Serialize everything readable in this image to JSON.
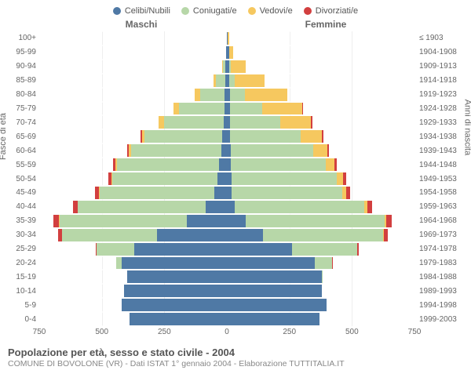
{
  "legend": [
    {
      "label": "Celibi/Nubili",
      "color": "#4f79a5"
    },
    {
      "label": "Coniugati/e",
      "color": "#b7d7a8"
    },
    {
      "label": "Vedovi/e",
      "color": "#f6c85f"
    },
    {
      "label": "Divorziati/e",
      "color": "#d23f3f"
    }
  ],
  "sideHeaders": {
    "left": "Maschi",
    "right": "Femmine"
  },
  "axisLabels": {
    "left": "Fasce di età",
    "right": "Anni di nascita"
  },
  "caption": {
    "title": "Popolazione per età, sesso e stato civile - 2004",
    "sub": "COMUNE DI BOVOLONE (VR) - Dati ISTAT 1° gennaio 2004 - Elaborazione TUTTITALIA.IT"
  },
  "colors": {
    "single": "#4f79a5",
    "married": "#b7d7a8",
    "widowed": "#f6c85f",
    "divorced": "#d23f3f",
    "grid": "#eeeeee",
    "centerline": "#5b8fb9",
    "text": "#666666",
    "background": "#ffffff"
  },
  "xAxis": {
    "min": 0,
    "max": 750,
    "ticks": [
      750,
      500,
      250,
      0,
      250,
      500,
      750
    ]
  },
  "ageLabels": [
    "100+",
    "95-99",
    "90-94",
    "85-89",
    "80-84",
    "75-79",
    "70-74",
    "65-69",
    "60-64",
    "55-59",
    "50-54",
    "45-49",
    "40-44",
    "35-39",
    "30-34",
    "25-29",
    "20-24",
    "15-19",
    "10-14",
    "5-9",
    "0-4"
  ],
  "birthLabels": [
    "≤ 1903",
    "1904-1908",
    "1909-1913",
    "1914-1918",
    "1919-1923",
    "1924-1928",
    "1929-1933",
    "1934-1938",
    "1939-1943",
    "1944-1948",
    "1949-1953",
    "1954-1958",
    "1959-1963",
    "1964-1968",
    "1969-1973",
    "1974-1978",
    "1979-1983",
    "1984-1988",
    "1989-1993",
    "1994-1998",
    "1999-2003"
  ],
  "rows": [
    {
      "m": {
        "single": 0,
        "married": 0,
        "widowed": 0,
        "divorced": 0
      },
      "f": {
        "single": 3,
        "married": 0,
        "widowed": 5,
        "divorced": 0
      }
    },
    {
      "m": {
        "single": 2,
        "married": 1,
        "widowed": 1,
        "divorced": 0
      },
      "f": {
        "single": 8,
        "married": 0,
        "widowed": 18,
        "divorced": 0
      }
    },
    {
      "m": {
        "single": 5,
        "married": 10,
        "widowed": 5,
        "divorced": 0
      },
      "f": {
        "single": 10,
        "married": 5,
        "widowed": 60,
        "divorced": 0
      }
    },
    {
      "m": {
        "single": 5,
        "married": 40,
        "widowed": 10,
        "divorced": 0
      },
      "f": {
        "single": 10,
        "married": 20,
        "widowed": 120,
        "divorced": 0
      }
    },
    {
      "m": {
        "single": 8,
        "married": 100,
        "widowed": 22,
        "divorced": 0
      },
      "f": {
        "single": 12,
        "married": 60,
        "widowed": 170,
        "divorced": 0
      }
    },
    {
      "m": {
        "single": 10,
        "married": 180,
        "widowed": 25,
        "divorced": 0
      },
      "f": {
        "single": 12,
        "married": 130,
        "widowed": 160,
        "divorced": 4
      }
    },
    {
      "m": {
        "single": 12,
        "married": 240,
        "widowed": 20,
        "divorced": 2
      },
      "f": {
        "single": 12,
        "married": 200,
        "widowed": 125,
        "divorced": 5
      }
    },
    {
      "m": {
        "single": 18,
        "married": 310,
        "widowed": 12,
        "divorced": 4
      },
      "f": {
        "single": 14,
        "married": 280,
        "widowed": 85,
        "divorced": 8
      }
    },
    {
      "m": {
        "single": 22,
        "married": 360,
        "widowed": 10,
        "divorced": 6
      },
      "f": {
        "single": 16,
        "married": 330,
        "widowed": 55,
        "divorced": 8
      }
    },
    {
      "m": {
        "single": 30,
        "married": 410,
        "widowed": 6,
        "divorced": 8
      },
      "f": {
        "single": 16,
        "married": 380,
        "widowed": 35,
        "divorced": 10
      }
    },
    {
      "m": {
        "single": 38,
        "married": 420,
        "widowed": 4,
        "divorced": 12
      },
      "f": {
        "single": 18,
        "married": 420,
        "widowed": 25,
        "divorced": 14
      }
    },
    {
      "m": {
        "single": 50,
        "married": 460,
        "widowed": 3,
        "divorced": 14
      },
      "f": {
        "single": 20,
        "married": 440,
        "widowed": 18,
        "divorced": 16
      }
    },
    {
      "m": {
        "single": 85,
        "married": 510,
        "widowed": 2,
        "divorced": 18
      },
      "f": {
        "single": 30,
        "married": 520,
        "widowed": 12,
        "divorced": 20
      }
    },
    {
      "m": {
        "single": 160,
        "married": 510,
        "widowed": 1,
        "divorced": 22
      },
      "f": {
        "single": 75,
        "married": 555,
        "widowed": 8,
        "divorced": 22
      }
    },
    {
      "m": {
        "single": 280,
        "married": 380,
        "widowed": 0,
        "divorced": 14
      },
      "f": {
        "single": 145,
        "married": 480,
        "widowed": 4,
        "divorced": 14
      }
    },
    {
      "m": {
        "single": 370,
        "married": 150,
        "widowed": 0,
        "divorced": 4
      },
      "f": {
        "single": 260,
        "married": 260,
        "widowed": 1,
        "divorced": 5
      }
    },
    {
      "m": {
        "single": 420,
        "married": 24,
        "widowed": 0,
        "divorced": 0
      },
      "f": {
        "single": 350,
        "married": 70,
        "widowed": 0,
        "divorced": 1
      }
    },
    {
      "m": {
        "single": 400,
        "married": 0,
        "widowed": 0,
        "divorced": 0
      },
      "f": {
        "single": 380,
        "married": 3,
        "widowed": 0,
        "divorced": 0
      }
    },
    {
      "m": {
        "single": 410,
        "married": 0,
        "widowed": 0,
        "divorced": 0
      },
      "f": {
        "single": 380,
        "married": 0,
        "widowed": 0,
        "divorced": 0
      }
    },
    {
      "m": {
        "single": 420,
        "married": 0,
        "widowed": 0,
        "divorced": 0
      },
      "f": {
        "single": 400,
        "married": 0,
        "widowed": 0,
        "divorced": 0
      }
    },
    {
      "m": {
        "single": 390,
        "married": 0,
        "widowed": 0,
        "divorced": 0
      },
      "f": {
        "single": 370,
        "married": 0,
        "widowed": 0,
        "divorced": 0
      }
    }
  ]
}
